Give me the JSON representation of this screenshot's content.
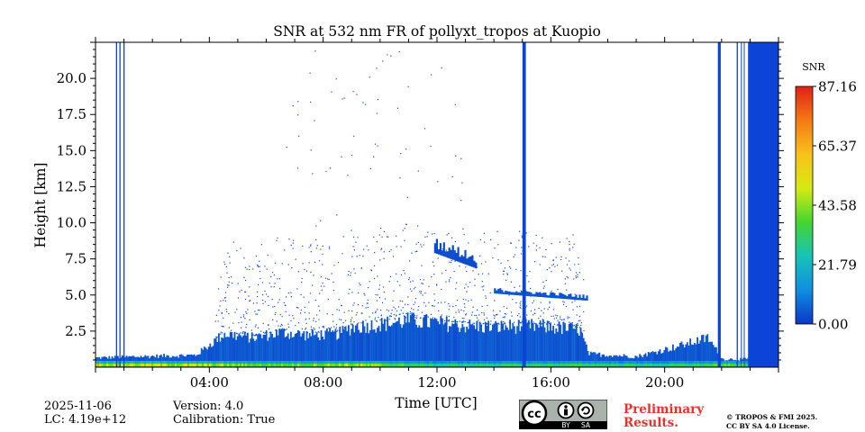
{
  "chart_data": {
    "type": "heatmap",
    "title": "SNR at 532 nm FR of pollyxt_tropos at Kuopio",
    "xlabel": "Time [UTC]",
    "ylabel": "Height [km]",
    "xlim_hours": [
      0,
      24
    ],
    "ylim_km": [
      0,
      22.5
    ],
    "x_ticks": [
      {
        "value": 4,
        "label": "04:00"
      },
      {
        "value": 8,
        "label": "08:00"
      },
      {
        "value": 12,
        "label": "12:00"
      },
      {
        "value": 16,
        "label": "16:00"
      },
      {
        "value": 20,
        "label": "20:00"
      }
    ],
    "y_ticks": [
      {
        "value": 2.5,
        "label": "2.5"
      },
      {
        "value": 5.0,
        "label": "5.0"
      },
      {
        "value": 7.5,
        "label": "7.5"
      },
      {
        "value": 10.0,
        "label": "10.0"
      },
      {
        "value": 12.5,
        "label": "12.5"
      },
      {
        "value": 15.0,
        "label": "15.0"
      },
      {
        "value": 17.5,
        "label": "17.5"
      },
      {
        "value": 20.0,
        "label": "20.0"
      }
    ],
    "colorbar": {
      "label": "SNR",
      "min": 0.0,
      "max": 87.16,
      "ticks": [
        {
          "value": 0.0,
          "label": "0.00"
        },
        {
          "value": 21.79,
          "label": "21.79"
        },
        {
          "value": 43.58,
          "label": "43.58"
        },
        {
          "value": 65.37,
          "label": "65.37"
        },
        {
          "value": 87.16,
          "label": "87.16"
        }
      ],
      "colors": [
        "#0b36c8",
        "#0f8fe0",
        "#17c3b7",
        "#44d62f",
        "#d6ea14",
        "#f8c21a",
        "#f57a14",
        "#e02016"
      ]
    },
    "no_signal_periods_hours": [
      {
        "start": 0.72,
        "end": 0.76
      },
      {
        "start": 0.84,
        "end": 0.88
      },
      {
        "start": 0.98,
        "end": 1.02
      },
      {
        "start": 15.0,
        "end": 15.12
      },
      {
        "start": 21.87,
        "end": 21.97
      },
      {
        "start": 22.53,
        "end": 22.57
      },
      {
        "start": 22.68,
        "end": 22.71
      },
      {
        "start": 22.78,
        "end": 22.81
      },
      {
        "start": 22.93,
        "end": 24.0
      }
    ],
    "signal_top_km": [
      {
        "hour": 0.0,
        "top": 0.7
      },
      {
        "hour": 1.5,
        "top": 0.8
      },
      {
        "hour": 3.5,
        "top": 0.9
      },
      {
        "hour": 4.5,
        "top": 2.5
      },
      {
        "hour": 5.5,
        "top": 2.2
      },
      {
        "hour": 6.5,
        "top": 2.6
      },
      {
        "hour": 7.5,
        "top": 2.4
      },
      {
        "hour": 8.5,
        "top": 2.5
      },
      {
        "hour": 9.0,
        "top": 3.0
      },
      {
        "hour": 10.0,
        "top": 3.2
      },
      {
        "hour": 11.0,
        "top": 3.5
      },
      {
        "hour": 12.0,
        "top": 3.3
      },
      {
        "hour": 13.0,
        "top": 3.1
      },
      {
        "hour": 14.0,
        "top": 3.0
      },
      {
        "hour": 15.0,
        "top": 3.1
      },
      {
        "hour": 16.0,
        "top": 3.0
      },
      {
        "hour": 17.0,
        "top": 2.8
      },
      {
        "hour": 17.3,
        "top": 1.0
      },
      {
        "hour": 19.0,
        "top": 0.8
      },
      {
        "hour": 20.5,
        "top": 1.6
      },
      {
        "hour": 21.5,
        "top": 2.2
      },
      {
        "hour": 22.0,
        "top": 0.6
      },
      {
        "hour": 24.0,
        "top": 0.6
      }
    ],
    "surface_snr": [
      {
        "hour": 0.0,
        "snr": 55
      },
      {
        "hour": 3.0,
        "snr": 50
      },
      {
        "hour": 4.5,
        "snr": 45
      },
      {
        "hour": 6.0,
        "snr": 40
      },
      {
        "hour": 9.0,
        "snr": 48
      },
      {
        "hour": 12.0,
        "snr": 30
      },
      {
        "hour": 17.0,
        "snr": 35
      },
      {
        "hour": 20.0,
        "snr": 30
      },
      {
        "hour": 24.0,
        "snr": 45
      }
    ],
    "cloud_layers": [
      {
        "start": 14.0,
        "end": 17.3,
        "base_km": 5.1,
        "top_km": 4.6,
        "thickness_km": 0.35,
        "snr": 4
      },
      {
        "start": 11.9,
        "end": 13.4,
        "base_km": 7.9,
        "top_km": 6.8,
        "thickness_km": 0.9,
        "snr": 3
      }
    ]
  },
  "footer": {
    "date": "2025-11-06",
    "lc": "LC: 4.19e+12",
    "version": "Version: 4.0",
    "calibration": "Calibration: True",
    "preliminary_line1": "Preliminary",
    "preliminary_line2": "Results.",
    "copyright_line1": "© TROPOS & FMI 2025.",
    "copyright_line2": "CC BY SA 4.0 License.",
    "cc_badge": {
      "cc": "cc",
      "by": "BY",
      "sa": "SA"
    }
  }
}
